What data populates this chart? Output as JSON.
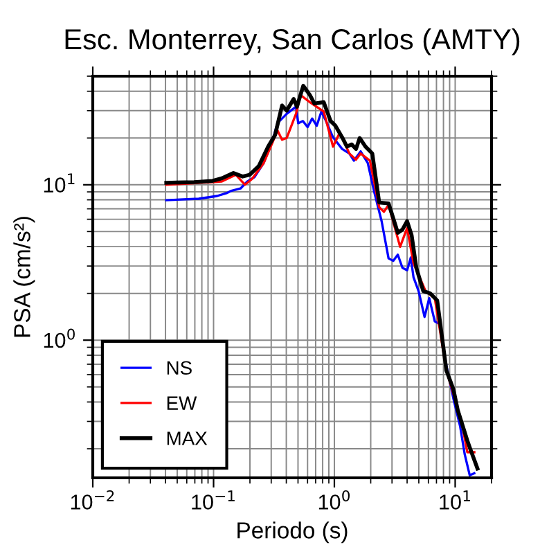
{
  "chart_data": {
    "type": "line",
    "title": "Esc. Monterrey, San Carlos (AMTY)",
    "xlabel": "Periodo (s)",
    "ylabel": "PSA (cm/s²)",
    "log": "xy",
    "xlim": [
      0.01,
      20
    ],
    "ylim": [
      0.13,
      50
    ],
    "xticks": [
      {
        "value": 0.01,
        "label": "10$^{−2}$"
      },
      {
        "value": 0.1,
        "label": "10$^{−1}$"
      },
      {
        "value": 1,
        "label": "10$^{0}$"
      },
      {
        "value": 10,
        "label": "10$^{1}$"
      }
    ],
    "yticks": [
      {
        "value": 1,
        "label": "10$^{0}$"
      },
      {
        "value": 10,
        "label": "10$^{1}$"
      }
    ],
    "grid": true,
    "legend": "bottom left",
    "marker": "none",
    "line_style": "solid",
    "series": [
      {
        "name": "NS",
        "color": "#0000ff",
        "x": [
          0.0406,
          0.0753,
          0.107,
          0.128,
          0.14,
          0.167,
          0.19,
          0.218,
          0.26,
          0.309,
          0.338,
          0.403,
          0.481,
          0.502,
          0.549,
          0.6,
          0.655,
          0.715,
          0.781,
          0.853,
          0.975,
          1.16,
          1.33,
          1.45,
          1.65,
          1.89,
          2.15,
          2.46,
          2.81,
          3.07,
          3.35,
          3.66,
          4.0,
          4.29,
          4.52,
          4.98,
          5.58,
          6.1,
          6.78,
          7.41,
          8.46,
          9.66,
          11.0,
          12.0,
          13.2,
          14.4
        ],
        "values": [
          7.96,
          8.13,
          8.47,
          8.83,
          9.14,
          9.46,
          10.5,
          11.2,
          13.8,
          19.5,
          24.9,
          28.6,
          31.8,
          24.9,
          25.7,
          23.5,
          26.7,
          24.0,
          29.6,
          25.7,
          20.2,
          17.0,
          15.9,
          14.3,
          16.4,
          13.8,
          8.83,
          5.84,
          3.36,
          3.24,
          3.55,
          2.92,
          2.82,
          3.4,
          2.54,
          2.07,
          1.41,
          1.86,
          1.32,
          1.27,
          0.684,
          0.422,
          0.278,
          0.184,
          0.135,
          0.139
        ]
      },
      {
        "name": "EW",
        "color": "#ff0000",
        "x": [
          0.0406,
          0.117,
          0.153,
          0.182,
          0.208,
          0.26,
          0.309,
          0.338,
          0.369,
          0.403,
          0.481,
          0.525,
          0.627,
          0.817,
          0.975,
          1.11,
          1.33,
          1.51,
          1.65,
          1.97,
          2.35,
          2.57,
          2.81,
          3.5,
          4.0,
          4.52,
          5.69,
          6.78,
          8.46,
          9.66,
          11.5,
          12.6,
          14.4
        ],
        "values": [
          10.0,
          10.5,
          11.6,
          10.0,
          10.9,
          13.8,
          18.9,
          22.4,
          19.5,
          20.0,
          28.6,
          37.8,
          34.0,
          29.6,
          17.6,
          21.7,
          15.9,
          14.5,
          15.9,
          14.3,
          7.18,
          6.7,
          7.43,
          3.99,
          5.26,
          3.13,
          2.07,
          1.86,
          0.638,
          0.452,
          0.278,
          0.19,
          0.19
        ]
      },
      {
        "name": "MAX",
        "color": "#000000",
        "x": [
          0.0406,
          0.069,
          0.098,
          0.117,
          0.146,
          0.174,
          0.199,
          0.237,
          0.283,
          0.323,
          0.369,
          0.403,
          0.46,
          0.49,
          0.553,
          0.627,
          0.684,
          0.817,
          0.931,
          1.02,
          1.16,
          1.27,
          1.39,
          1.51,
          1.62,
          1.81,
          2.06,
          2.35,
          2.81,
          3.35,
          3.66,
          4.0,
          4.36,
          4.77,
          5.44,
          6.21,
          7.1,
          8.46,
          9.66,
          10.5,
          12.6,
          13.2,
          15.3
        ],
        "values": [
          10.3,
          10.4,
          10.6,
          11.0,
          11.9,
          11.3,
          11.6,
          13.2,
          17.6,
          20.9,
          32.4,
          30.0,
          35.7,
          31.8,
          43.4,
          37.8,
          33.3,
          34.0,
          25.7,
          24.0,
          20.2,
          17.6,
          18.2,
          17.0,
          20.0,
          17.6,
          15.9,
          7.69,
          7.59,
          4.91,
          5.15,
          5.84,
          4.74,
          2.92,
          2.07,
          2.0,
          1.8,
          0.638,
          0.484,
          0.355,
          0.226,
          0.204,
          0.149
        ]
      }
    ]
  }
}
